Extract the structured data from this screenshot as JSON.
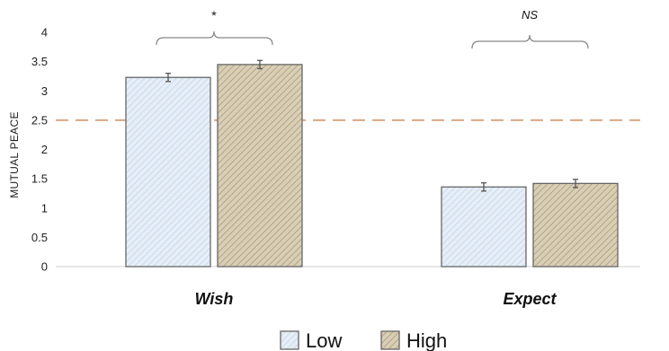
{
  "chart_data": {
    "type": "bar",
    "title": "",
    "xlabel": "",
    "ylabel": "MUTUAL PEACE",
    "ylim": [
      0,
      4
    ],
    "yticks": [
      "0",
      "0.5",
      "1",
      "1.5",
      "2",
      "2.5",
      "3",
      "3.5",
      "4"
    ],
    "categories": [
      "Wish",
      "Expect"
    ],
    "series": [
      {
        "name": "Low",
        "values": [
          3.23,
          1.36
        ],
        "errors": [
          0.07,
          0.07
        ],
        "color": "#e6eef7",
        "hatch_color": "#b9cbe2"
      },
      {
        "name": "High",
        "values": [
          3.45,
          1.42
        ],
        "errors": [
          0.07,
          0.07
        ],
        "color": "#d9cfb6",
        "hatch_color": "#a89a78"
      }
    ],
    "reference_line": {
      "value": 2.5,
      "color": "#d9a884",
      "style": "dashed"
    },
    "significance": [
      "*",
      "NS"
    ],
    "legend": {
      "position": "bottom-center"
    },
    "grid": false
  }
}
